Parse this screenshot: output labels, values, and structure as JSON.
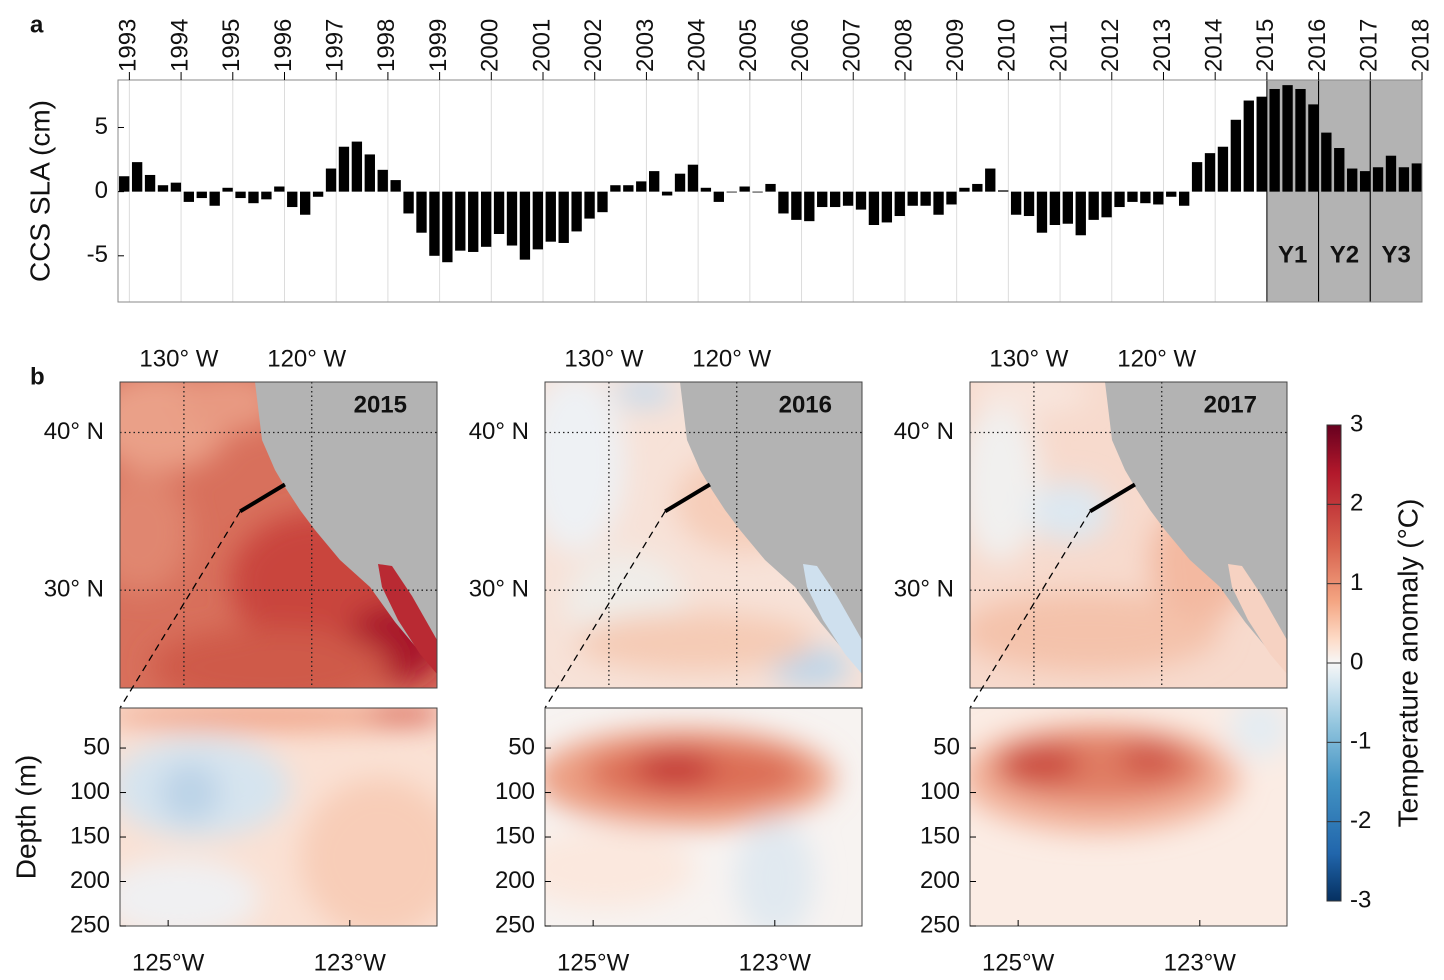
{
  "chart_data": [
    {
      "type": "bar",
      "panel": "a",
      "ylabel": "CCS SLA (cm)",
      "x": [
        1992.9,
        1993.15,
        1993.4,
        1993.65,
        1993.9,
        1994.15,
        1994.4,
        1994.65,
        1994.9,
        1995.15,
        1995.4,
        1995.65,
        1995.9,
        1996.15,
        1996.4,
        1996.65,
        1996.9,
        1997.15,
        1997.4,
        1997.65,
        1997.9,
        1998.15,
        1998.4,
        1998.65,
        1998.9,
        1999.15,
        1999.4,
        1999.65,
        1999.9,
        2000.15,
        2000.4,
        2000.65,
        2000.9,
        2001.15,
        2001.4,
        2001.65,
        2001.9,
        2002.15,
        2002.4,
        2002.65,
        2002.9,
        2003.15,
        2003.4,
        2003.65,
        2003.9,
        2004.15,
        2004.4,
        2004.65,
        2004.9,
        2005.15,
        2005.4,
        2005.65,
        2005.9,
        2006.15,
        2006.4,
        2006.65,
        2006.9,
        2007.15,
        2007.4,
        2007.65,
        2007.9,
        2008.15,
        2008.4,
        2008.65,
        2008.9,
        2009.15,
        2009.4,
        2009.65,
        2009.9,
        2010.15,
        2010.4,
        2010.65,
        2010.9,
        2011.15,
        2011.4,
        2011.65,
        2011.9,
        2012.15,
        2012.4,
        2012.65,
        2012.9,
        2013.15,
        2013.4,
        2013.65,
        2013.9,
        2014.15,
        2014.4,
        2014.65,
        2014.9,
        2015.15,
        2015.4,
        2015.65,
        2015.9,
        2016.15,
        2016.4,
        2016.65,
        2016.9,
        2017.15,
        2017.4,
        2017.65,
        2017.9
      ],
      "values": [
        1.2,
        2.3,
        1.3,
        0.5,
        0.7,
        -0.8,
        -0.5,
        -1.1,
        0.3,
        -0.5,
        -0.9,
        -0.6,
        0.4,
        -1.2,
        -1.8,
        -0.4,
        1.8,
        3.5,
        3.9,
        2.9,
        1.7,
        0.9,
        -1.7,
        -3.2,
        -5.0,
        -5.5,
        -4.6,
        -4.7,
        -4.3,
        -3.3,
        -4.2,
        -5.3,
        -4.5,
        -3.9,
        -4.0,
        -3.1,
        -2.1,
        -1.6,
        0.5,
        0.5,
        0.8,
        1.6,
        -0.3,
        1.4,
        2.1,
        0.3,
        -0.8,
        0.0,
        0.4,
        0.0,
        0.6,
        -1.7,
        -2.2,
        -2.3,
        -1.2,
        -1.2,
        -1.1,
        -1.4,
        -2.6,
        -2.4,
        -1.9,
        -1.1,
        -1.1,
        -1.8,
        -1.0,
        0.3,
        0.6,
        1.8,
        0.1,
        -1.8,
        -1.9,
        -3.2,
        -2.6,
        -2.5,
        -3.4,
        -2.2,
        -2.0,
        -1.2,
        -0.8,
        -0.9,
        -1.0,
        -0.4,
        -1.1,
        2.3,
        3.0,
        3.5,
        5.6,
        7.1,
        7.4,
        8.0,
        8.3,
        8.0,
        6.8,
        4.6,
        3.4,
        1.8,
        1.6,
        1.9,
        2.8,
        1.9,
        2.2
      ],
      "color": "#000000",
      "xlim": [
        1992.78,
        2018.0
      ],
      "xticks": [
        1993,
        1994,
        1995,
        1996,
        1997,
        1998,
        1999,
        2000,
        2001,
        2002,
        2003,
        2004,
        2005,
        2006,
        2007,
        2008,
        2009,
        2010,
        2011,
        2012,
        2013,
        2014,
        2015,
        2016,
        2017,
        2018
      ],
      "ylim": [
        -8.6,
        8.7
      ],
      "yticks": [
        -5,
        0,
        5
      ],
      "grid": true,
      "periods": [
        {
          "label": "Y1",
          "x": [
            2015,
            2016
          ]
        },
        {
          "label": "Y2",
          "x": [
            2016,
            2017
          ]
        },
        {
          "label": "Y3",
          "x": [
            2017,
            2018
          ]
        }
      ],
      "period_color": "#b3b3b3"
    },
    {
      "type": "map",
      "panel": "b",
      "panels": [
        {
          "title": "2015"
        },
        {
          "title": "2016"
        },
        {
          "title": "2017"
        }
      ],
      "lon_lim": [
        -135,
        -110.2
      ],
      "lon_ticks": [
        {
          "value": -130,
          "label": "130° W"
        },
        {
          "value": -120,
          "label": "120° W"
        }
      ],
      "lat_lim": [
        23.8,
        43.2
      ],
      "lat_ticks": [
        {
          "value": 40,
          "label": "40° N"
        },
        {
          "value": 30,
          "label": "30° N"
        }
      ],
      "grid": true,
      "transect": {
        "lon": [
          -125.6,
          -122.1
        ],
        "lat": [
          35.0,
          36.7
        ]
      },
      "section": {
        "ylabel": "Depth (m)",
        "xlim": [
          -125.53,
          -122.04
        ],
        "xticks": [
          {
            "value": -125,
            "label": "125°W"
          },
          {
            "value": -123,
            "label": "123°W"
          }
        ],
        "ylim": [
          5,
          250
        ],
        "yticks": [
          50,
          100,
          150,
          200,
          250
        ]
      },
      "colorbar": {
        "label": "Temperature anomaly (°C)",
        "clim": [
          -3,
          3
        ],
        "ticks": [
          3,
          2,
          1,
          0,
          -1,
          -2,
          -3
        ]
      }
    }
  ]
}
